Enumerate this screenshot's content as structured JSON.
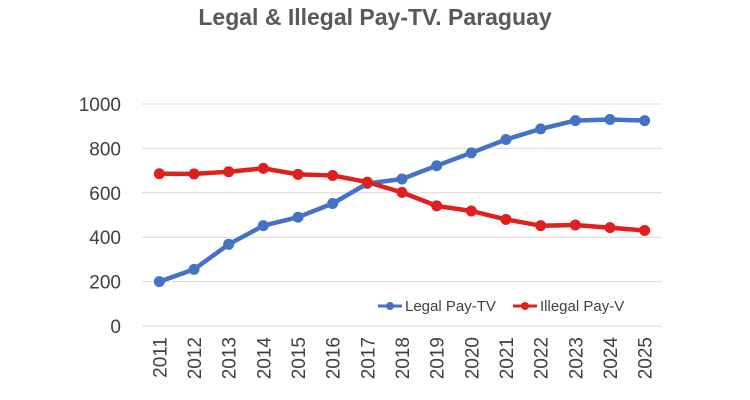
{
  "chart_data": {
    "type": "line",
    "title": "Legal & Illegal Pay-TV. Paraguay",
    "xlabel": "",
    "ylabel": "",
    "categories": [
      "2011",
      "2012",
      "2013",
      "2014",
      "2015",
      "2016",
      "2017",
      "2018",
      "2019",
      "2020",
      "2021",
      "2022",
      "2023",
      "2024",
      "2025"
    ],
    "ylim": [
      0,
      1000
    ],
    "yticks": [
      "0",
      "200",
      "400",
      "600",
      "800",
      "1000"
    ],
    "grid": "horizontal",
    "legend_position": "bottom-right inside",
    "series": [
      {
        "name": "Legal Pay-TV",
        "color": "#4472C4",
        "values": [
          200,
          255,
          368,
          452,
          490,
          552,
          642,
          662,
          722,
          780,
          840,
          888,
          925,
          930,
          925
        ]
      },
      {
        "name": "Illegal Pay-V",
        "color": "#E0201F",
        "values": [
          686,
          685,
          695,
          710,
          683,
          678,
          648,
          602,
          541,
          518,
          480,
          452,
          455,
          443,
          430
        ]
      }
    ]
  }
}
